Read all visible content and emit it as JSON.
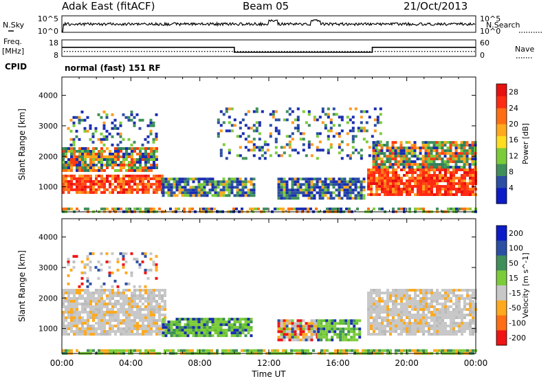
{
  "header": {
    "station": "Adak East (fitACF)",
    "beam": "Beam 05",
    "date": "21/Oct/2013"
  },
  "noise_panel": {
    "left_label": "N.Sky",
    "right_label": "N.Search",
    "left_ticks": [
      "10^5",
      "10^0"
    ],
    "right_ticks": [
      "10^5",
      "10^0"
    ]
  },
  "freq_panel": {
    "left_label": "Freq.",
    "left_unit": "[MHz]",
    "right_label": "Nave",
    "left_ticks": [
      "18",
      "8"
    ],
    "right_ticks": [
      "60",
      "0"
    ],
    "freq_mhz": [
      {
        "from": "00:00",
        "to": "10:00",
        "value": 13.5
      },
      {
        "from": "10:00",
        "to": "18:00",
        "value": 10.5
      },
      {
        "from": "18:00",
        "to": "24:00",
        "value": 13.5
      }
    ],
    "nave_level": 18
  },
  "cpid": {
    "label": "CPID",
    "value": "normal (fast) 151 RF"
  },
  "chart_data": [
    {
      "type": "heatmap",
      "name": "power",
      "ylabel": "Slant Range [km]",
      "yticks": [
        "1000",
        "2000",
        "3000",
        "4000"
      ],
      "ylim": [
        180,
        4600
      ],
      "xlim": [
        "00:00",
        "24:00"
      ],
      "colorbar": {
        "label": "Power [dB]",
        "ticks": [
          "4",
          "8",
          "12",
          "16",
          "20",
          "24",
          "28"
        ],
        "range": [
          0,
          30
        ]
      },
      "regions": [
        {
          "t0": 0.0,
          "t1": 5.9,
          "r0": 800,
          "r1": 1400,
          "level": "high"
        },
        {
          "t0": 0.0,
          "t1": 5.5,
          "r0": 1500,
          "r1": 2300,
          "level": "mixed"
        },
        {
          "t0": 0.3,
          "t1": 5.5,
          "r0": 2400,
          "r1": 3500,
          "level": "sparse"
        },
        {
          "t0": 5.8,
          "t1": 11.2,
          "r0": 750,
          "r1": 1300,
          "level": "low"
        },
        {
          "t0": 12.5,
          "t1": 17.5,
          "r0": 650,
          "r1": 1300,
          "level": "low"
        },
        {
          "t0": 17.7,
          "t1": 24.0,
          "r0": 750,
          "r1": 1600,
          "level": "high"
        },
        {
          "t0": 18.0,
          "t1": 24.0,
          "r0": 1600,
          "r1": 2500,
          "level": "mixed"
        },
        {
          "t0": 9.0,
          "t1": 18.5,
          "r0": 1900,
          "r1": 3600,
          "level": "sparse"
        },
        {
          "t0": 0.0,
          "t1": 24.0,
          "r0": 200,
          "r1": 320,
          "level": "ground"
        }
      ]
    },
    {
      "type": "heatmap",
      "name": "velocity",
      "ylabel": "Slant Range [km]",
      "xlabel": "Time UT",
      "yticks": [
        "1000",
        "2000",
        "3000",
        "4000"
      ],
      "ylim": [
        180,
        4600
      ],
      "xticks": [
        "00:00",
        "04:00",
        "08:00",
        "12:00",
        "16:00",
        "20:00",
        "00:00"
      ],
      "xlim": [
        "00:00",
        "24:00"
      ],
      "colorbar": {
        "label": "Velocity [m s^-1]",
        "ticks": [
          "200",
          "100",
          "50",
          "15",
          "-15",
          "-50",
          "-100",
          "-200"
        ],
        "colors": [
          "#0c1cc7",
          "#2b4fa3",
          "#3f8f5a",
          "#7ccc3a",
          "#c8c8c8",
          "#ffaa1e",
          "#ff6e14",
          "#f01414"
        ]
      },
      "regions": [
        {
          "t0": 0.0,
          "t1": 6.0,
          "r0": 800,
          "r1": 2300,
          "level": "ground_gray"
        },
        {
          "t0": 0.3,
          "t1": 5.5,
          "r0": 2400,
          "r1": 3500,
          "level": "sparse_gray"
        },
        {
          "t0": 5.8,
          "t1": 11.0,
          "r0": 750,
          "r1": 1350,
          "level": "green"
        },
        {
          "t0": 12.5,
          "t1": 14.8,
          "r0": 650,
          "r1": 1300,
          "level": "gray"
        },
        {
          "t0": 14.8,
          "t1": 17.3,
          "r0": 650,
          "r1": 1300,
          "level": "green"
        },
        {
          "t0": 17.7,
          "t1": 24.0,
          "r0": 800,
          "r1": 2300,
          "level": "ground_gray"
        },
        {
          "t0": 0.0,
          "t1": 24.0,
          "r0": 200,
          "r1": 320,
          "level": "green_strip"
        }
      ]
    }
  ]
}
